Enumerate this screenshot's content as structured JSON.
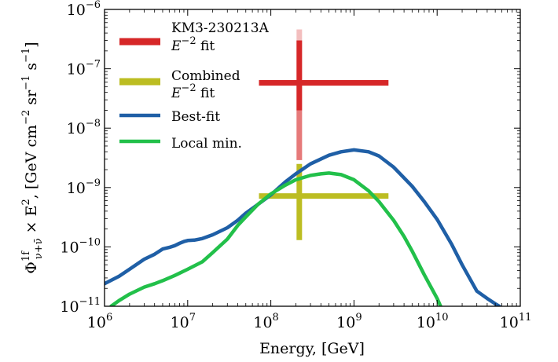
{
  "chart_data": {
    "type": "line",
    "title": "",
    "xlabel": "Energy, [GeV]",
    "ylabel": "Φ^{1f}_{ν+ν̄} × E^2, [GeV cm^-2 sr^-1 s^-1]",
    "xscale": "log",
    "yscale": "log",
    "xlim": [
      1000000,
      100000000000
    ],
    "ylim": [
      1e-11,
      1e-06
    ],
    "x_ticks": [
      {
        "value": 1000000,
        "base": "10",
        "exp": "6"
      },
      {
        "value": 10000000,
        "base": "10",
        "exp": "7"
      },
      {
        "value": 100000000,
        "base": "10",
        "exp": "8"
      },
      {
        "value": 1000000000,
        "base": "10",
        "exp": "9"
      },
      {
        "value": 10000000000,
        "base": "10",
        "exp": "10"
      },
      {
        "value": 100000000000,
        "base": "10",
        "exp": "11"
      }
    ],
    "y_ticks": [
      {
        "value": 1e-11,
        "base": "10",
        "exp": "−11"
      },
      {
        "value": 1e-10,
        "base": "10",
        "exp": "−10"
      },
      {
        "value": 1e-09,
        "base": "10",
        "exp": "−9"
      },
      {
        "value": 1e-08,
        "base": "10",
        "exp": "−8"
      },
      {
        "value": 1e-07,
        "base": "10",
        "exp": "−7"
      },
      {
        "value": 1e-06,
        "base": "10",
        "exp": "−6"
      }
    ],
    "legend_position": "top-left",
    "legend": [
      {
        "line1": "KM3-230213A",
        "line2": "E^−2 fit",
        "color": "#d62728"
      },
      {
        "line1": "Combined",
        "line2": "E^−2 fit",
        "color": "#bcbd22"
      },
      {
        "line1": "Best-fit",
        "line2": "",
        "color": "#1f5fa6"
      },
      {
        "line1": "Local min.",
        "line2": "",
        "color": "#22c04a"
      }
    ],
    "series": [
      {
        "name": "Best-fit",
        "color": "#1f5fa6",
        "x": [
          1000000,
          1500000,
          2000000,
          3000000,
          4000000,
          5000000,
          6000000,
          7000000,
          8000000,
          9000000,
          10000000,
          12000000,
          15000000,
          20000000,
          30000000,
          40000000,
          50000000,
          70000000,
          100000000,
          150000000,
          200000000,
          300000000,
          500000000,
          700000000,
          1000000000,
          1500000000,
          2000000000,
          3000000000,
          5000000000,
          7000000000,
          10000000000,
          15000000000,
          20000000000,
          30000000000,
          40000000000,
          50000000000,
          56000000000
        ],
        "y": [
          2.4e-11,
          3.2e-11,
          4.2e-11,
          6.2e-11,
          7.5e-11,
          9.2e-11,
          9.8e-11,
          1.05e-10,
          1.15e-10,
          1.23e-10,
          1.28e-10,
          1.3e-10,
          1.38e-10,
          1.6e-10,
          2.1e-10,
          2.8e-10,
          3.7e-10,
          5.2e-10,
          7.5e-10,
          1.25e-09,
          1.7e-09,
          2.5e-09,
          3.5e-09,
          4e-09,
          4.3e-09,
          4e-09,
          3.4e-09,
          2.2e-09,
          1.05e-09,
          5.8e-10,
          2.9e-10,
          1.1e-10,
          5e-11,
          1.8e-11,
          1.35e-11,
          1.1e-11,
          1e-11
        ]
      },
      {
        "name": "Local min.",
        "color": "#22c04a",
        "x": [
          1200000,
          1500000,
          2000000,
          3000000,
          4000000,
          5000000,
          7000000,
          10000000,
          15000000,
          20000000,
          30000000,
          40000000,
          50000000,
          70000000,
          100000000,
          150000000,
          200000000,
          300000000,
          400000000,
          500000000,
          700000000,
          1000000000,
          1500000000,
          2000000000,
          3000000000,
          4000000000,
          5000000000,
          7000000000,
          10000000000,
          11000000000
        ],
        "y": [
          1e-11,
          1.25e-11,
          1.6e-11,
          2.1e-11,
          2.4e-11,
          2.7e-11,
          3.3e-11,
          4.2e-11,
          5.6e-11,
          8e-11,
          1.35e-10,
          2.3e-10,
          3.2e-10,
          5.2e-10,
          7.8e-10,
          1.1e-09,
          1.35e-09,
          1.6e-09,
          1.7e-09,
          1.75e-09,
          1.65e-09,
          1.35e-09,
          8.8e-10,
          5.8e-10,
          2.8e-10,
          1.5e-10,
          8.5e-11,
          3.4e-11,
          1.35e-11,
          1e-11
        ]
      }
    ],
    "error_crosses": [
      {
        "name": "KM3-230213A E^−2 fit",
        "color": "#d62728",
        "x_center": 220000000,
        "x_range": [
          72000000,
          2600000000
        ],
        "y_center": 5.8e-08,
        "y_1sigma": [
          2e-08,
          3e-07
        ],
        "y_2sigma": [
          2.9e-09,
          4.6e-07
        ]
      },
      {
        "name": "Combined E^−2 fit",
        "color": "#bcbd22",
        "x_center": 220000000,
        "x_range": [
          72000000,
          2600000000
        ],
        "y_center": 7.2e-10,
        "y_range": [
          1.3e-10,
          2.5e-09
        ]
      }
    ]
  }
}
